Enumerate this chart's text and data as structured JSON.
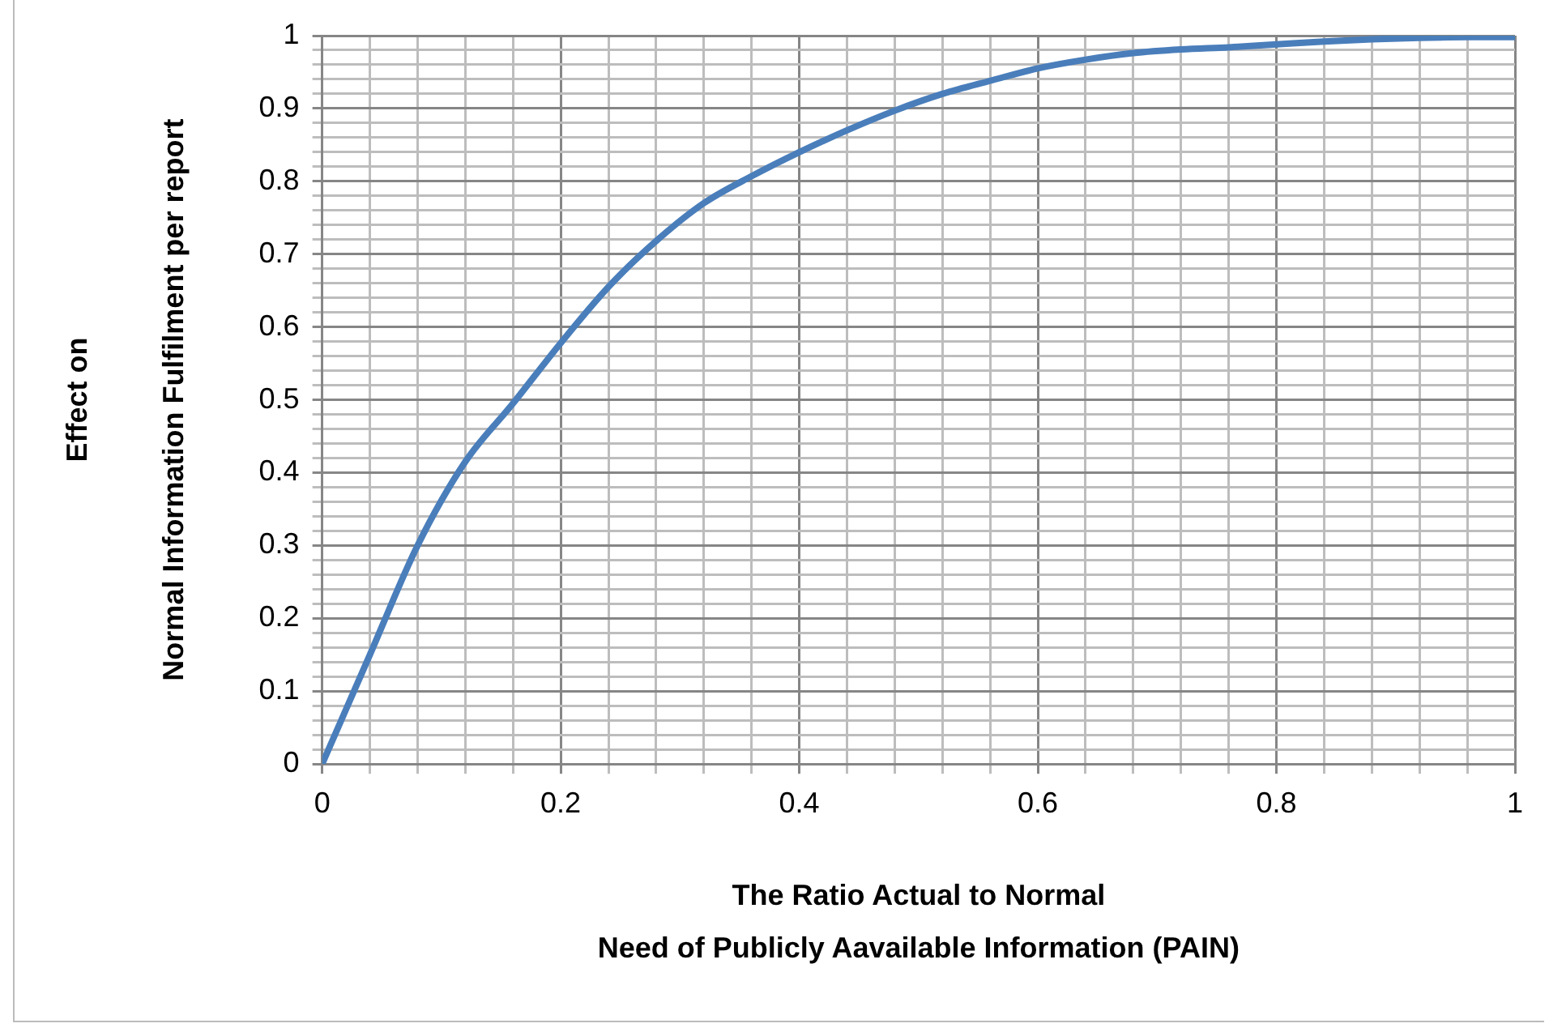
{
  "chart_data": {
    "type": "line",
    "xlabel": "The Ratio Actual to Normal\nNeed of Publicly Aavailable Information (PAIN)",
    "ylabel": "Effect on\nNormal Information Fulfilment per report",
    "x": [
      0,
      0.04,
      0.08,
      0.12,
      0.16,
      0.2,
      0.24,
      0.28,
      0.32,
      0.36,
      0.4,
      0.44,
      0.48,
      0.52,
      0.56,
      0.6,
      0.64,
      0.68,
      0.72,
      0.76,
      0.8,
      0.84,
      0.88,
      0.92,
      0.96,
      1
    ],
    "series": [
      {
        "color": "#4a7ebb",
        "values": [
          0,
          0.15,
          0.3,
          0.415,
          0.495,
          0.578,
          0.655,
          0.718,
          0.77,
          0.807,
          0.84,
          0.87,
          0.897,
          0.92,
          0.938,
          0.955,
          0.967,
          0.976,
          0.981,
          0.984,
          0.988,
          0.992,
          0.995,
          0.997,
          0.998,
          0.998
        ]
      }
    ],
    "xlim": [
      0,
      1
    ],
    "xticks": [
      0,
      {
        "value": 0.04,
        "label": null
      },
      {
        "value": 0.08,
        "label": null
      },
      {
        "value": 0.12,
        "label": null
      },
      {
        "value": 0.16,
        "label": null
      },
      0.2,
      {
        "value": 0.24,
        "label": null
      },
      {
        "value": 0.28,
        "label": null
      },
      {
        "value": 0.32,
        "label": null
      },
      {
        "value": 0.36,
        "label": null
      },
      0.4,
      {
        "value": 0.44,
        "label": null
      },
      {
        "value": 0.48,
        "label": null
      },
      {
        "value": 0.52,
        "label": null
      },
      {
        "value": 0.56,
        "label": null
      },
      0.6,
      {
        "value": 0.64,
        "label": null
      },
      {
        "value": 0.68,
        "label": null
      },
      {
        "value": 0.72,
        "label": null
      },
      {
        "value": 0.76,
        "label": null
      },
      0.8,
      {
        "value": 0.84,
        "label": null
      },
      {
        "value": 0.88,
        "label": null
      },
      {
        "value": 0.92,
        "label": null
      },
      {
        "value": 0.96,
        "label": null
      },
      1
    ],
    "ylim": [
      0,
      1
    ],
    "yticks": [
      0,
      {
        "value": 0.02,
        "label": null
      },
      {
        "value": 0.04,
        "label": null
      },
      {
        "value": 0.06,
        "label": null
      },
      {
        "value": 0.08,
        "label": null
      },
      0.1,
      {
        "value": 0.12,
        "label": null
      },
      {
        "value": 0.14,
        "label": null
      },
      {
        "value": 0.16,
        "label": null
      },
      {
        "value": 0.18,
        "label": null
      },
      0.2,
      {
        "value": 0.22,
        "label": null
      },
      {
        "value": 0.24,
        "label": null
      },
      {
        "value": 0.26,
        "label": null
      },
      {
        "value": 0.28,
        "label": null
      },
      0.3,
      {
        "value": 0.32,
        "label": null
      },
      {
        "value": 0.34,
        "label": null
      },
      {
        "value": 0.36,
        "label": null
      },
      {
        "value": 0.38,
        "label": null
      },
      0.4,
      {
        "value": 0.42,
        "label": null
      },
      {
        "value": 0.44,
        "label": null
      },
      {
        "value": 0.46,
        "label": null
      },
      {
        "value": 0.48,
        "label": null
      },
      0.5,
      {
        "value": 0.52,
        "label": null
      },
      {
        "value": 0.54,
        "label": null
      },
      {
        "value": 0.56,
        "label": null
      },
      {
        "value": 0.58,
        "label": null
      },
      0.6,
      {
        "value": 0.62,
        "label": null
      },
      {
        "value": 0.64,
        "label": null
      },
      {
        "value": 0.66,
        "label": null
      },
      {
        "value": 0.68,
        "label": null
      },
      0.7,
      {
        "value": 0.72,
        "label": null
      },
      {
        "value": 0.74,
        "label": null
      },
      {
        "value": 0.76,
        "label": null
      },
      {
        "value": 0.78,
        "label": null
      },
      0.8,
      {
        "value": 0.82,
        "label": null
      },
      {
        "value": 0.84,
        "label": null
      },
      {
        "value": 0.86,
        "label": null
      },
      {
        "value": 0.88,
        "label": null
      },
      0.9,
      {
        "value": 0.92,
        "label": null
      },
      {
        "value": 0.94,
        "label": null
      },
      {
        "value": 0.96,
        "label": null
      },
      {
        "value": 0.98,
        "label": null
      },
      1
    ],
    "grid": true,
    "marker": "none",
    "line_style": "solid",
    "legend": false
  }
}
